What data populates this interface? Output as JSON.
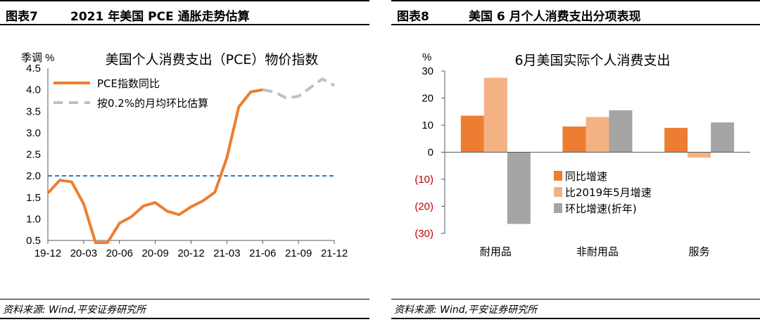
{
  "left": {
    "header_label": "图表7",
    "header_title": "2021 年美国 PCE 通胀走势估算",
    "source": "资料来源: Wind,平安证券研究所"
  },
  "right": {
    "header_label": "图表8",
    "header_title": "美国 6 月个人消费支出分项表现",
    "source": "资料来源: Wind,平安证券研究所"
  },
  "chart_data": [
    {
      "type": "line",
      "title": "美国个人消费支出（PCE）物价指数",
      "ylabel": "季调 %",
      "ylim": [
        0.5,
        4.5
      ],
      "yticks": [
        "0.5",
        "1.0",
        "1.5",
        "2.0",
        "2.5",
        "3.0",
        "3.5",
        "4.0",
        "4.5"
      ],
      "x": [
        "19-12",
        "20-01",
        "20-02",
        "20-03",
        "20-04",
        "20-05",
        "20-06",
        "20-07",
        "20-08",
        "20-09",
        "20-10",
        "20-11",
        "20-12",
        "21-01",
        "21-02",
        "21-03",
        "21-04",
        "21-05",
        "21-06",
        "21-07",
        "21-08",
        "21-09",
        "21-10",
        "21-11",
        "21-12"
      ],
      "xtick_labels": [
        "19-12",
        "20-03",
        "20-06",
        "20-09",
        "20-12",
        "21-03",
        "21-06",
        "21-09",
        "21-12"
      ],
      "reference_line": 2.0,
      "series": [
        {
          "name": "PCE指数同比",
          "color": "#ED7D31",
          "style": "solid",
          "values": [
            1.6,
            1.9,
            1.86,
            1.35,
            0.45,
            0.45,
            0.9,
            1.05,
            1.3,
            1.38,
            1.18,
            1.1,
            1.28,
            1.42,
            1.62,
            2.42,
            3.6,
            3.95,
            4.0,
            null,
            null,
            null,
            null,
            null,
            null
          ]
        },
        {
          "name": "按0.2%的月均环比估算",
          "color": "#BFBFBF",
          "style": "dashed",
          "values": [
            null,
            null,
            null,
            null,
            null,
            null,
            null,
            null,
            null,
            null,
            null,
            null,
            null,
            null,
            null,
            null,
            null,
            null,
            4.0,
            3.95,
            3.8,
            3.85,
            4.05,
            4.25,
            4.1
          ]
        }
      ],
      "legend_position": "top-left"
    },
    {
      "type": "bar",
      "title": "6月美国实际个人消费支出",
      "ylabel": "%",
      "ylim": [
        -30,
        30
      ],
      "yticks": [
        "30",
        "20",
        "10",
        "0",
        "(10)",
        "(20)",
        "(30)"
      ],
      "categories": [
        "耐用品",
        "非耐用品",
        "服务"
      ],
      "series": [
        {
          "name": "同比增速",
          "color": "#ED7D31",
          "values": [
            13.5,
            9.5,
            9.0
          ]
        },
        {
          "name": "比2019年5月增速",
          "color": "#F4B183",
          "values": [
            27.5,
            13.0,
            -2.0
          ]
        },
        {
          "name": "环比增速(折年)",
          "color": "#A5A5A5",
          "values": [
            -26.5,
            15.5,
            11.0
          ]
        }
      ],
      "legend_position": "center"
    }
  ]
}
